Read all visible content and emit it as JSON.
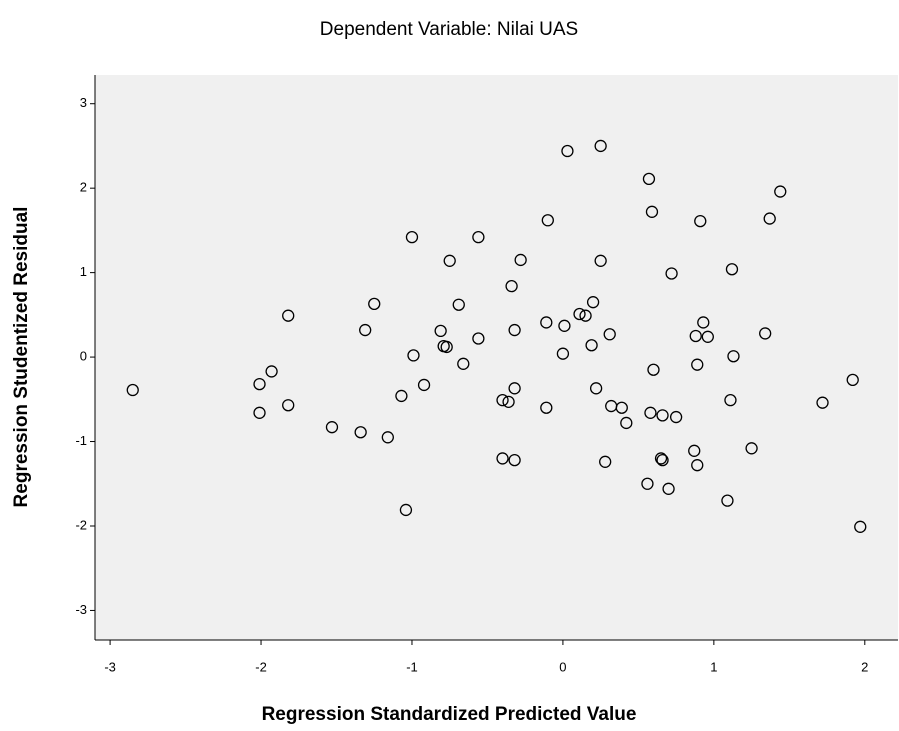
{
  "chart_data": {
    "type": "scatter",
    "title": "Dependent Variable: Nilai UAS",
    "x_label": "Regression Standardized Predicted Value",
    "y_label": "Regression Studentized Residual",
    "xlim": [
      -3.1,
      2.22
    ],
    "ylim": [
      -3.35,
      3.34
    ],
    "xticks": [
      -3,
      -2,
      -1,
      0,
      1,
      2
    ],
    "yticks": [
      -3,
      -2,
      -1,
      0,
      1,
      2,
      3
    ],
    "color": "#000000",
    "background": "#f0f0f0",
    "x": [
      -2.85,
      -2.01,
      -1.93,
      -2.01,
      -1.82,
      -1.82,
      -1.53,
      -1.34,
      -1.31,
      -1.25,
      -1.16,
      -1.07,
      -1.0,
      -0.99,
      -0.92,
      -1.04,
      -0.81,
      -0.79,
      -0.77,
      -0.75,
      -0.69,
      -0.66,
      -0.56,
      -0.56,
      -0.4,
      -0.4,
      -0.36,
      -0.32,
      -0.32,
      -0.34,
      -0.32,
      -0.28,
      -0.11,
      -0.11,
      -0.1,
      0.0,
      0.01,
      0.03,
      0.11,
      0.15,
      0.19,
      0.2,
      0.22,
      0.25,
      0.25,
      0.31,
      0.28,
      0.32,
      0.39,
      0.42,
      0.56,
      0.57,
      0.58,
      0.59,
      0.6,
      0.65,
      0.66,
      0.66,
      0.7,
      0.72,
      0.75,
      0.88,
      0.89,
      0.87,
      0.89,
      0.91,
      0.93,
      0.96,
      1.09,
      1.11,
      1.12,
      1.13,
      1.25,
      1.34,
      1.37,
      1.44,
      1.72,
      1.92,
      1.97
    ],
    "values": [
      -0.39,
      -0.32,
      -0.17,
      -0.66,
      0.49,
      -0.57,
      -0.83,
      -0.89,
      0.32,
      0.63,
      -0.95,
      -0.46,
      1.42,
      0.02,
      -0.33,
      -1.81,
      0.31,
      0.13,
      0.12,
      1.14,
      0.62,
      -0.08,
      1.42,
      0.22,
      -0.51,
      -1.2,
      -0.53,
      -0.37,
      -1.22,
      0.84,
      0.32,
      1.15,
      0.41,
      -0.6,
      1.62,
      0.04,
      0.37,
      2.44,
      0.51,
      0.49,
      0.14,
      0.65,
      -0.37,
      2.5,
      1.14,
      0.27,
      -1.24,
      -0.58,
      -0.6,
      -0.78,
      -1.5,
      2.11,
      -0.66,
      1.72,
      -0.15,
      -1.2,
      -1.22,
      -0.69,
      -1.56,
      0.99,
      -0.71,
      0.25,
      -0.09,
      -1.11,
      -1.28,
      1.61,
      0.41,
      0.24,
      -1.7,
      -0.51,
      1.04,
      0.01,
      -1.08,
      0.28,
      1.64,
      1.96,
      -0.54,
      -0.27,
      -2.01
    ]
  }
}
